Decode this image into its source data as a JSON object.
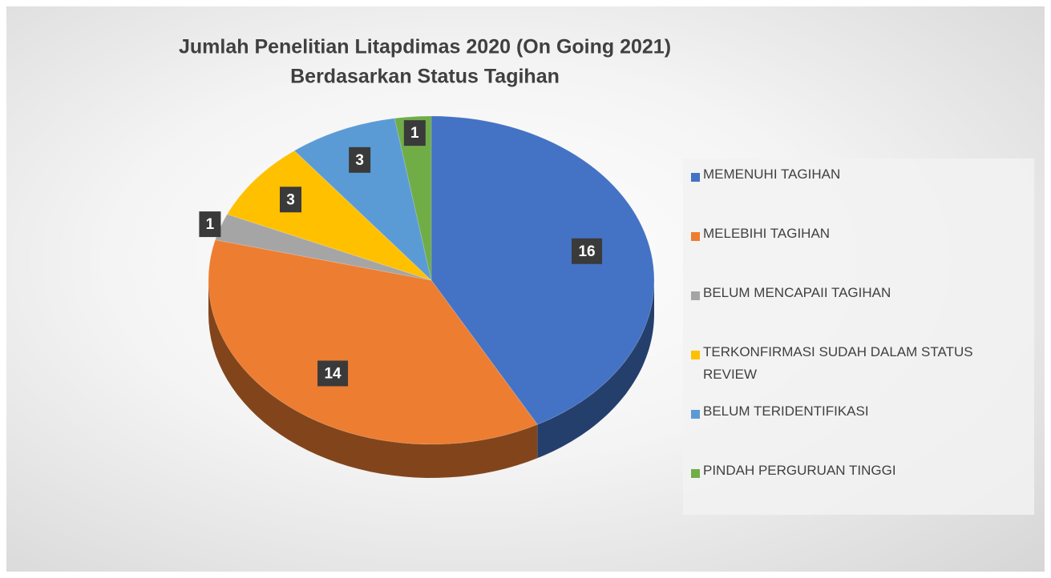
{
  "chart_data": {
    "type": "pie",
    "title_lines": [
      "Jumlah Penelitian Litapdimas 2020 (On Going 2021)",
      "Berdasarkan Status Tagihan"
    ],
    "categories": [
      "MEMENUHI TAGIHAN",
      "MELEBIHI TAGIHAN",
      "BELUM MENCAPAII TAGIHAN",
      "TERKONFIRMASI SUDAH DALAM STATUS REVIEW",
      "BELUM TERIDENTIFIKASI",
      "PINDAH PERGURUAN TINGGI"
    ],
    "values": [
      16,
      14,
      1,
      3,
      3,
      1
    ],
    "colors": [
      "#4472c4",
      "#ed7d31",
      "#a5a5a5",
      "#ffc000",
      "#5b9bd5",
      "#70ad47"
    ],
    "legend": "right"
  }
}
